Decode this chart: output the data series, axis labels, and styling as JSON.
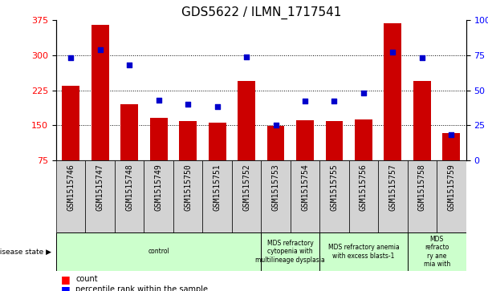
{
  "title": "GDS5622 / ILMN_1717541",
  "samples": [
    "GSM1515746",
    "GSM1515747",
    "GSM1515748",
    "GSM1515749",
    "GSM1515750",
    "GSM1515751",
    "GSM1515752",
    "GSM1515753",
    "GSM1515754",
    "GSM1515755",
    "GSM1515756",
    "GSM1515757",
    "GSM1515758",
    "GSM1515759"
  ],
  "counts": [
    235,
    365,
    195,
    165,
    158,
    155,
    245,
    148,
    160,
    158,
    163,
    368,
    245,
    133
  ],
  "percentiles": [
    73,
    79,
    68,
    43,
    40,
    38,
    74,
    25,
    42,
    42,
    48,
    77,
    73,
    18
  ],
  "ylim_left": [
    75,
    375
  ],
  "ylim_right": [
    0,
    100
  ],
  "yticks_left": [
    75,
    150,
    225,
    300,
    375
  ],
  "yticks_right": [
    0,
    25,
    50,
    75,
    100
  ],
  "bar_color": "#cc0000",
  "dot_color": "#0000cc",
  "sample_bg_color": "#cccccc",
  "disease_groups": [
    {
      "label": "control",
      "start": 0,
      "end": 7,
      "color": "#ccffcc"
    },
    {
      "label": "MDS refractory\ncytopenia with\nmultilineage dysplasia",
      "start": 7,
      "end": 9,
      "color": "#ccffcc"
    },
    {
      "label": "MDS refractory anemia\nwith excess blasts-1",
      "start": 9,
      "end": 12,
      "color": "#ccffcc"
    },
    {
      "label": "MDS\nrefracto\nry ane\nmia with",
      "start": 12,
      "end": 14,
      "color": "#ccffcc"
    }
  ],
  "title_fontsize": 11,
  "tick_fontsize": 7,
  "label_fontsize": 7
}
